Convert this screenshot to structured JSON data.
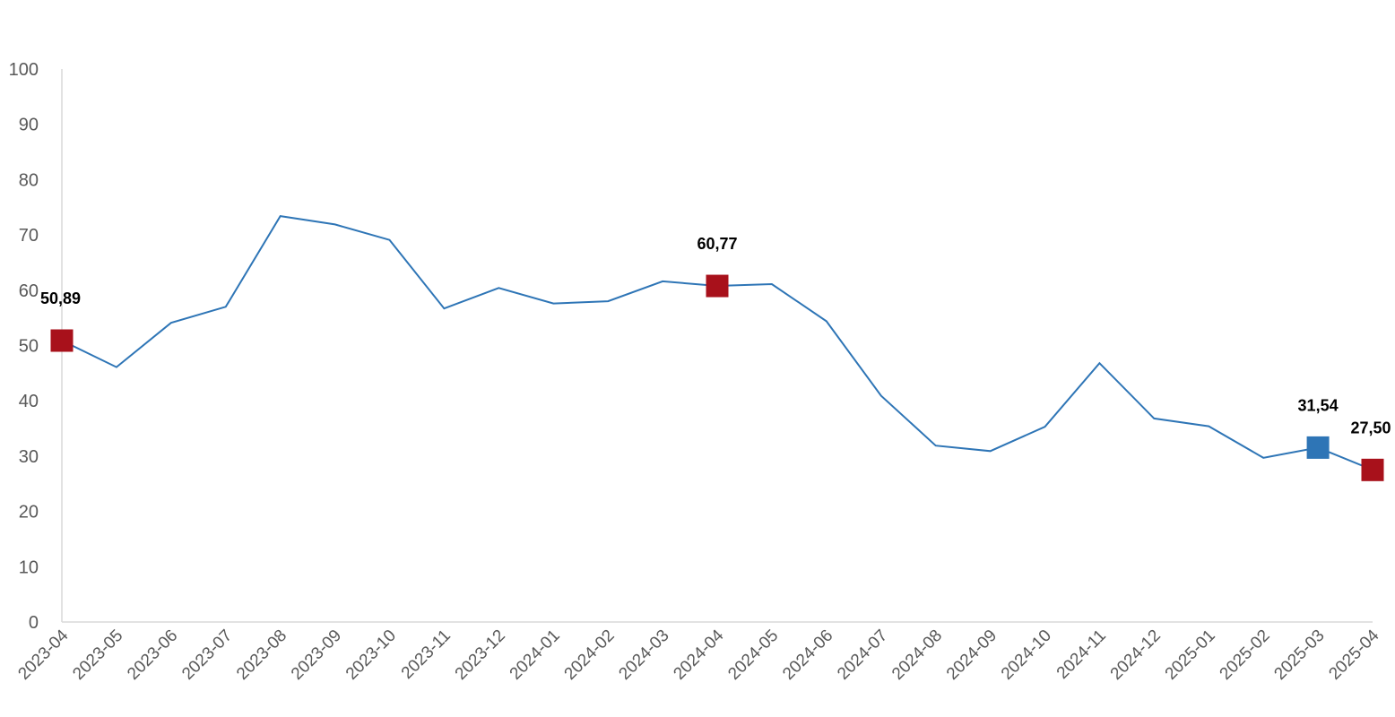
{
  "chart_data": {
    "type": "line",
    "title": "",
    "xlabel": "",
    "ylabel": "",
    "ylim": [
      0,
      100
    ],
    "yticks": [
      0,
      10,
      20,
      30,
      40,
      50,
      60,
      70,
      80,
      90,
      100
    ],
    "grid": false,
    "legend": "none",
    "categories": [
      "2023-04",
      "2023-05",
      "2023-06",
      "2023-07",
      "2023-08",
      "2023-09",
      "2023-10",
      "2023-11",
      "2023-12",
      "2024-01",
      "2024-02",
      "2024-03",
      "2024-04",
      "2024-05",
      "2024-06",
      "2024-07",
      "2024-08",
      "2024-09",
      "2024-10",
      "2024-11",
      "2024-12",
      "2025-01",
      "2025-02",
      "2025-03",
      "2025-04"
    ],
    "series": [
      {
        "color": "#2e75b6",
        "values": [
          50.89,
          46.1,
          54.1,
          57.0,
          73.4,
          71.9,
          69.1,
          56.7,
          60.4,
          57.6,
          58.0,
          61.6,
          60.77,
          61.1,
          54.4,
          40.9,
          31.9,
          30.9,
          35.3,
          46.8,
          36.8,
          35.4,
          29.7,
          31.54,
          27.5
        ]
      }
    ],
    "highlights": [
      {
        "index": 0,
        "label": "50,89",
        "color": "#a8111b"
      },
      {
        "index": 12,
        "label": "60,77",
        "color": "#a8111b"
      },
      {
        "index": 23,
        "label": "31,54",
        "color": "#2e75b6"
      },
      {
        "index": 24,
        "label": "27,50",
        "color": "#a8111b"
      }
    ]
  }
}
